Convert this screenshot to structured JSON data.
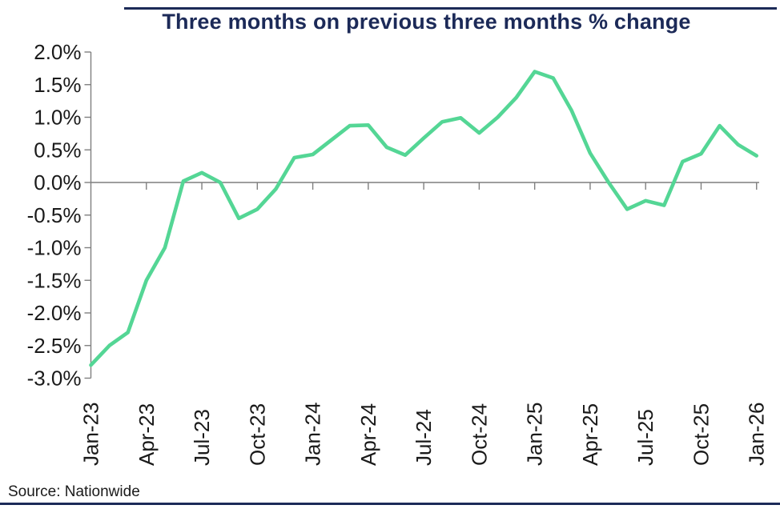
{
  "header": {
    "title": "Three months on previous three months % change"
  },
  "footer": {
    "source": "Source: Nationwide"
  },
  "colors": {
    "navy": "#1C2A58",
    "line_green": "#54D695",
    "axis_gray": "#7F7F7F",
    "label_dark": "#1A1A1A"
  },
  "chart_data": {
    "type": "line",
    "title": "Three months on previous three months % change",
    "xlabel": "",
    "ylabel": "",
    "x": [
      "Jan-23",
      "Feb-23",
      "Mar-23",
      "Apr-23",
      "May-23",
      "Jun-23",
      "Jul-23",
      "Aug-23",
      "Sep-23",
      "Oct-23",
      "Nov-23",
      "Dec-23",
      "Jan-24",
      "Feb-24",
      "Mar-24",
      "Apr-24",
      "May-24",
      "Jun-24",
      "Jul-24",
      "Aug-24",
      "Sep-24",
      "Oct-24",
      "Nov-24",
      "Dec-24",
      "Jan-25",
      "Feb-25",
      "Mar-25",
      "Apr-25",
      "May-25",
      "Jun-25",
      "Jul-25",
      "Aug-25",
      "Sep-25",
      "Oct-25",
      "Nov-25",
      "Dec-25",
      "Jan-26"
    ],
    "series": [
      {
        "name": "3m on previous 3m % change",
        "color": "#54D695",
        "values": [
          -2.8,
          -2.5,
          -2.3,
          -1.5,
          -1.0,
          0.02,
          0.15,
          0.0,
          -0.55,
          -0.41,
          -0.1,
          0.38,
          0.43,
          0.65,
          0.87,
          0.88,
          0.54,
          0.42,
          0.68,
          0.93,
          0.99,
          0.76,
          1.0,
          1.3,
          1.7,
          1.6,
          1.1,
          0.45,
          0.0,
          -0.41,
          -0.28,
          -0.35,
          0.32,
          0.44,
          0.87,
          0.58,
          0.41
        ]
      }
    ],
    "x_tick_labels": [
      "Jan-23",
      "Apr-23",
      "Jul-23",
      "Oct-23",
      "Jan-24",
      "Apr-24",
      "Jul-24",
      "Oct-24",
      "Jan-25",
      "Apr-25",
      "Jul-25",
      "Oct-25",
      "Jan-26"
    ],
    "y_ticks": [
      2.0,
      1.5,
      1.0,
      0.5,
      0.0,
      -0.5,
      -1.0,
      -1.5,
      -2.0,
      -2.5,
      -3.0
    ],
    "y_tick_labels": [
      "2.0%",
      "1.5%",
      "1.0%",
      "0.5%",
      "0.0%",
      "-0.5%",
      "-1.0%",
      "-1.5%",
      "-2.0%",
      "-2.5%",
      "-3.0%"
    ],
    "ylim": [
      -3.0,
      2.0
    ],
    "grid": "zero-line-only",
    "legend": "none"
  }
}
